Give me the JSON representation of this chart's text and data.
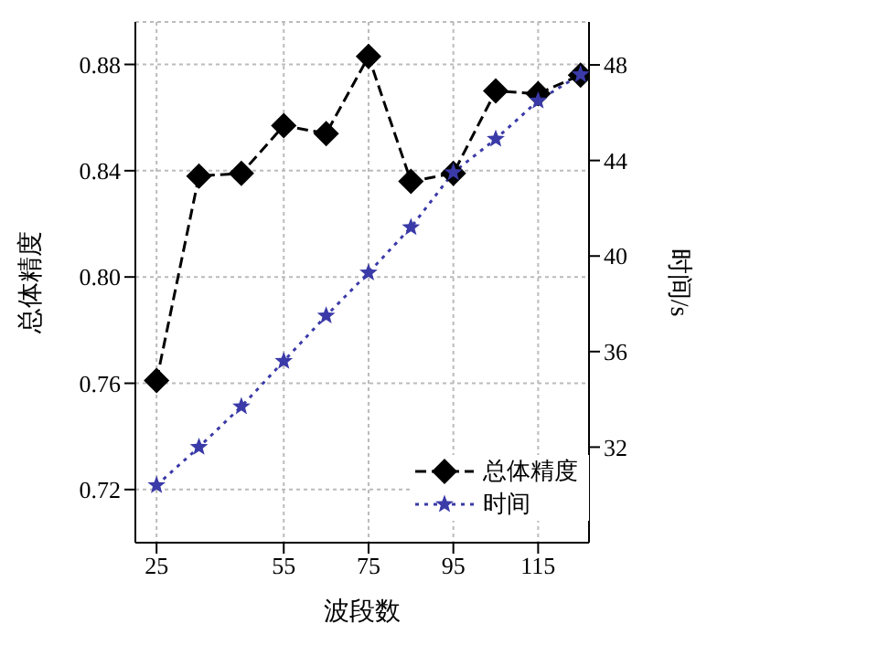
{
  "chart_data": {
    "type": "line",
    "xlabel": "波段数",
    "ylabel": "总体精度",
    "y2label": "时间/s",
    "x": [
      25,
      35,
      45,
      55,
      65,
      75,
      85,
      95,
      105,
      115,
      125
    ],
    "series": [
      {
        "name": "总体精度",
        "color": "#000000",
        "marker": "diamond",
        "line_style": "dashed",
        "values": [
          0.761,
          0.838,
          0.839,
          0.857,
          0.854,
          0.883,
          0.836,
          0.839,
          0.87,
          0.869,
          0.876
        ]
      },
      {
        "name": "时间",
        "color": "#3a3aa8",
        "marker": "star",
        "line_style": "dotted",
        "axis": "y2",
        "values": [
          30.4,
          32.0,
          33.7,
          35.6,
          37.5,
          39.3,
          41.2,
          43.5,
          44.9,
          46.5,
          47.6
        ]
      }
    ],
    "xlim": [
      20,
      127
    ],
    "xticks": [
      25,
      55,
      75,
      95,
      115
    ],
    "ylim": [
      0.7,
      0.896
    ],
    "yticks": [
      0.72,
      0.76,
      {
        "value": 0.8,
        "label": "0.80"
      },
      0.84,
      0.88
    ],
    "y2lim": [
      28,
      49.8
    ],
    "y2ticks": [
      32,
      36,
      40,
      44,
      48
    ],
    "grid": true,
    "legend": "bottom right"
  }
}
